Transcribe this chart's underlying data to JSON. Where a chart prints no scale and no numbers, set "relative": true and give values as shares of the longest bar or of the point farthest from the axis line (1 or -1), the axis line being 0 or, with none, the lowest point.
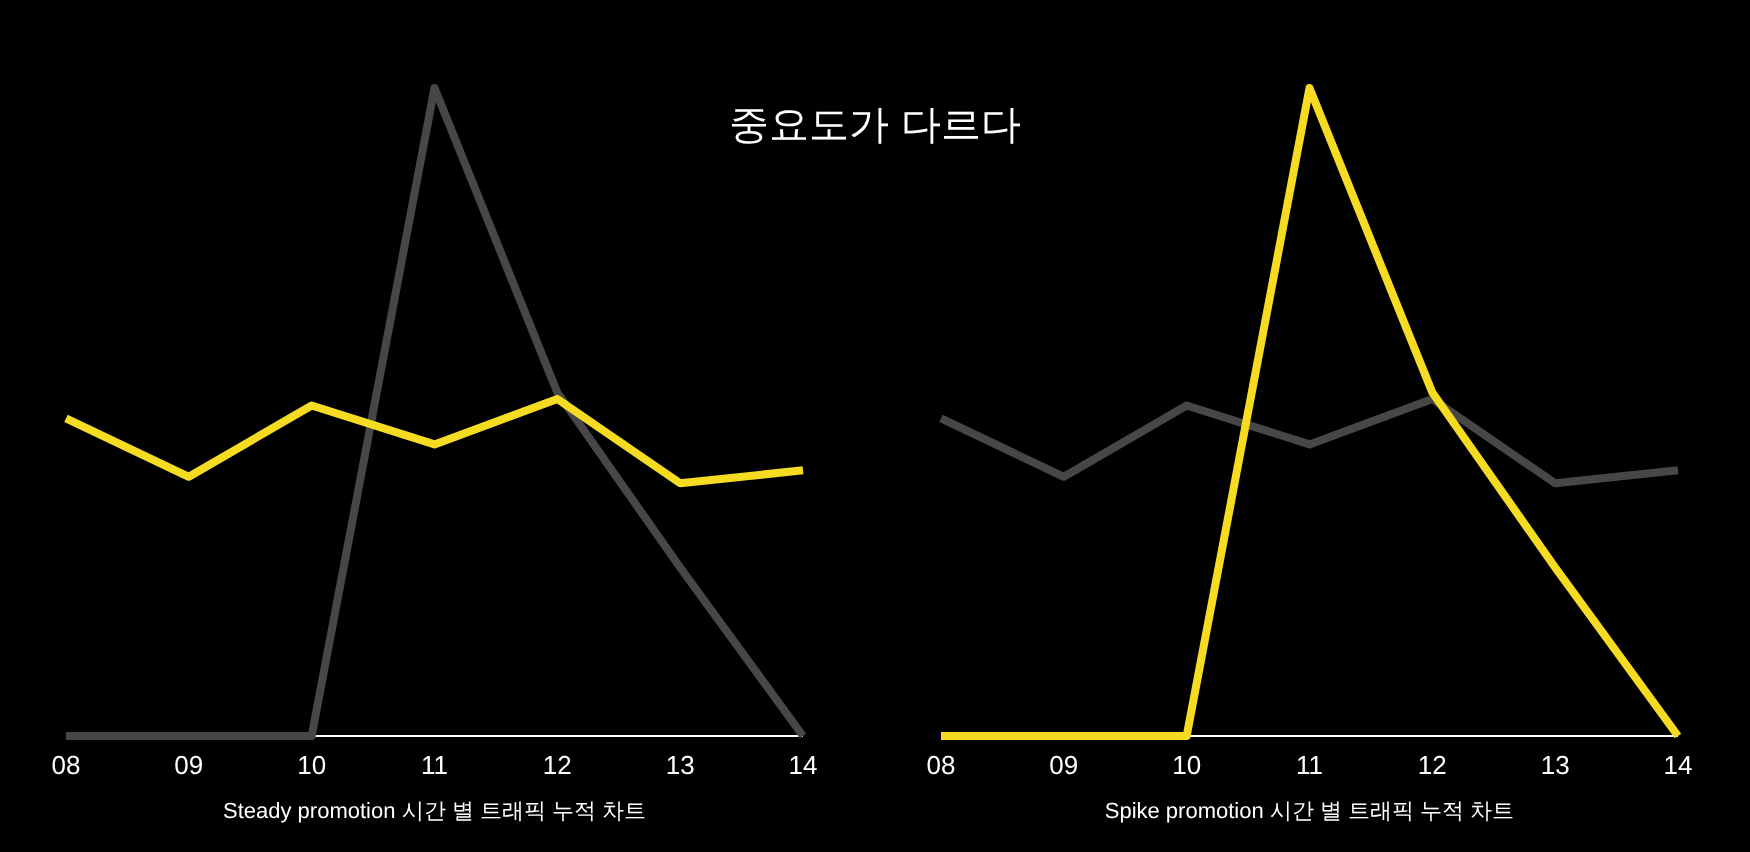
{
  "chart_data": [
    {
      "type": "line",
      "title": "중요도가 다르다",
      "xlabel": "Steady promotion 시간 별 트래픽 누적 차트",
      "relative": true,
      "categories": [
        "08",
        "09",
        "10",
        "11",
        "12",
        "13",
        "14"
      ],
      "series": [
        {
          "color": "#474747",
          "values": [
            0,
            0,
            0,
            1,
            0.53,
            0.26,
            0
          ]
        },
        {
          "color": "#f5dc23",
          "values": [
            0.49,
            0.4,
            0.51,
            0.45,
            0.52,
            0.39,
            0.41
          ]
        }
      ]
    },
    {
      "type": "line",
      "xlabel": "Spike promotion 시간 별 트래픽 누적 차트",
      "relative": true,
      "categories": [
        "08",
        "09",
        "10",
        "11",
        "12",
        "13",
        "14"
      ],
      "series": [
        {
          "color": "#474747",
          "values": [
            0.49,
            0.4,
            0.51,
            0.45,
            0.52,
            0.39,
            0.41
          ]
        },
        {
          "color": "#f5dc23",
          "values": [
            0,
            0,
            0,
            1,
            0.53,
            0.26,
            0
          ]
        }
      ]
    }
  ]
}
